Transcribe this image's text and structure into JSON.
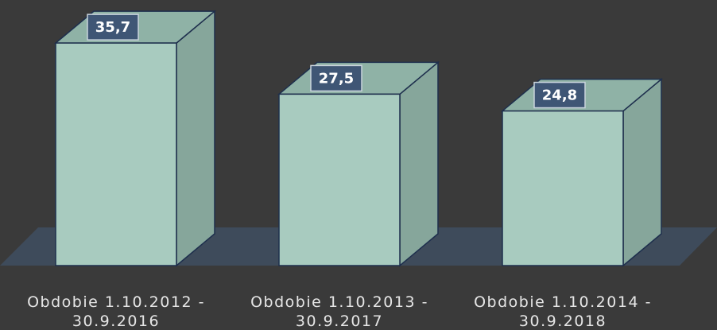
{
  "chart_data": {
    "type": "bar3d",
    "categories": [
      "Obdobie 1.10.2012 - 30.9.2016",
      "Obdobie 1.10.2013 - 30.9.2017",
      "Obdobie 1.10.2014 - 30.9.2018"
    ],
    "values": [
      35.7,
      27.5,
      24.8
    ],
    "value_labels": [
      "35,7",
      "27,5",
      "24,8"
    ],
    "color": "#a8cbbf"
  }
}
